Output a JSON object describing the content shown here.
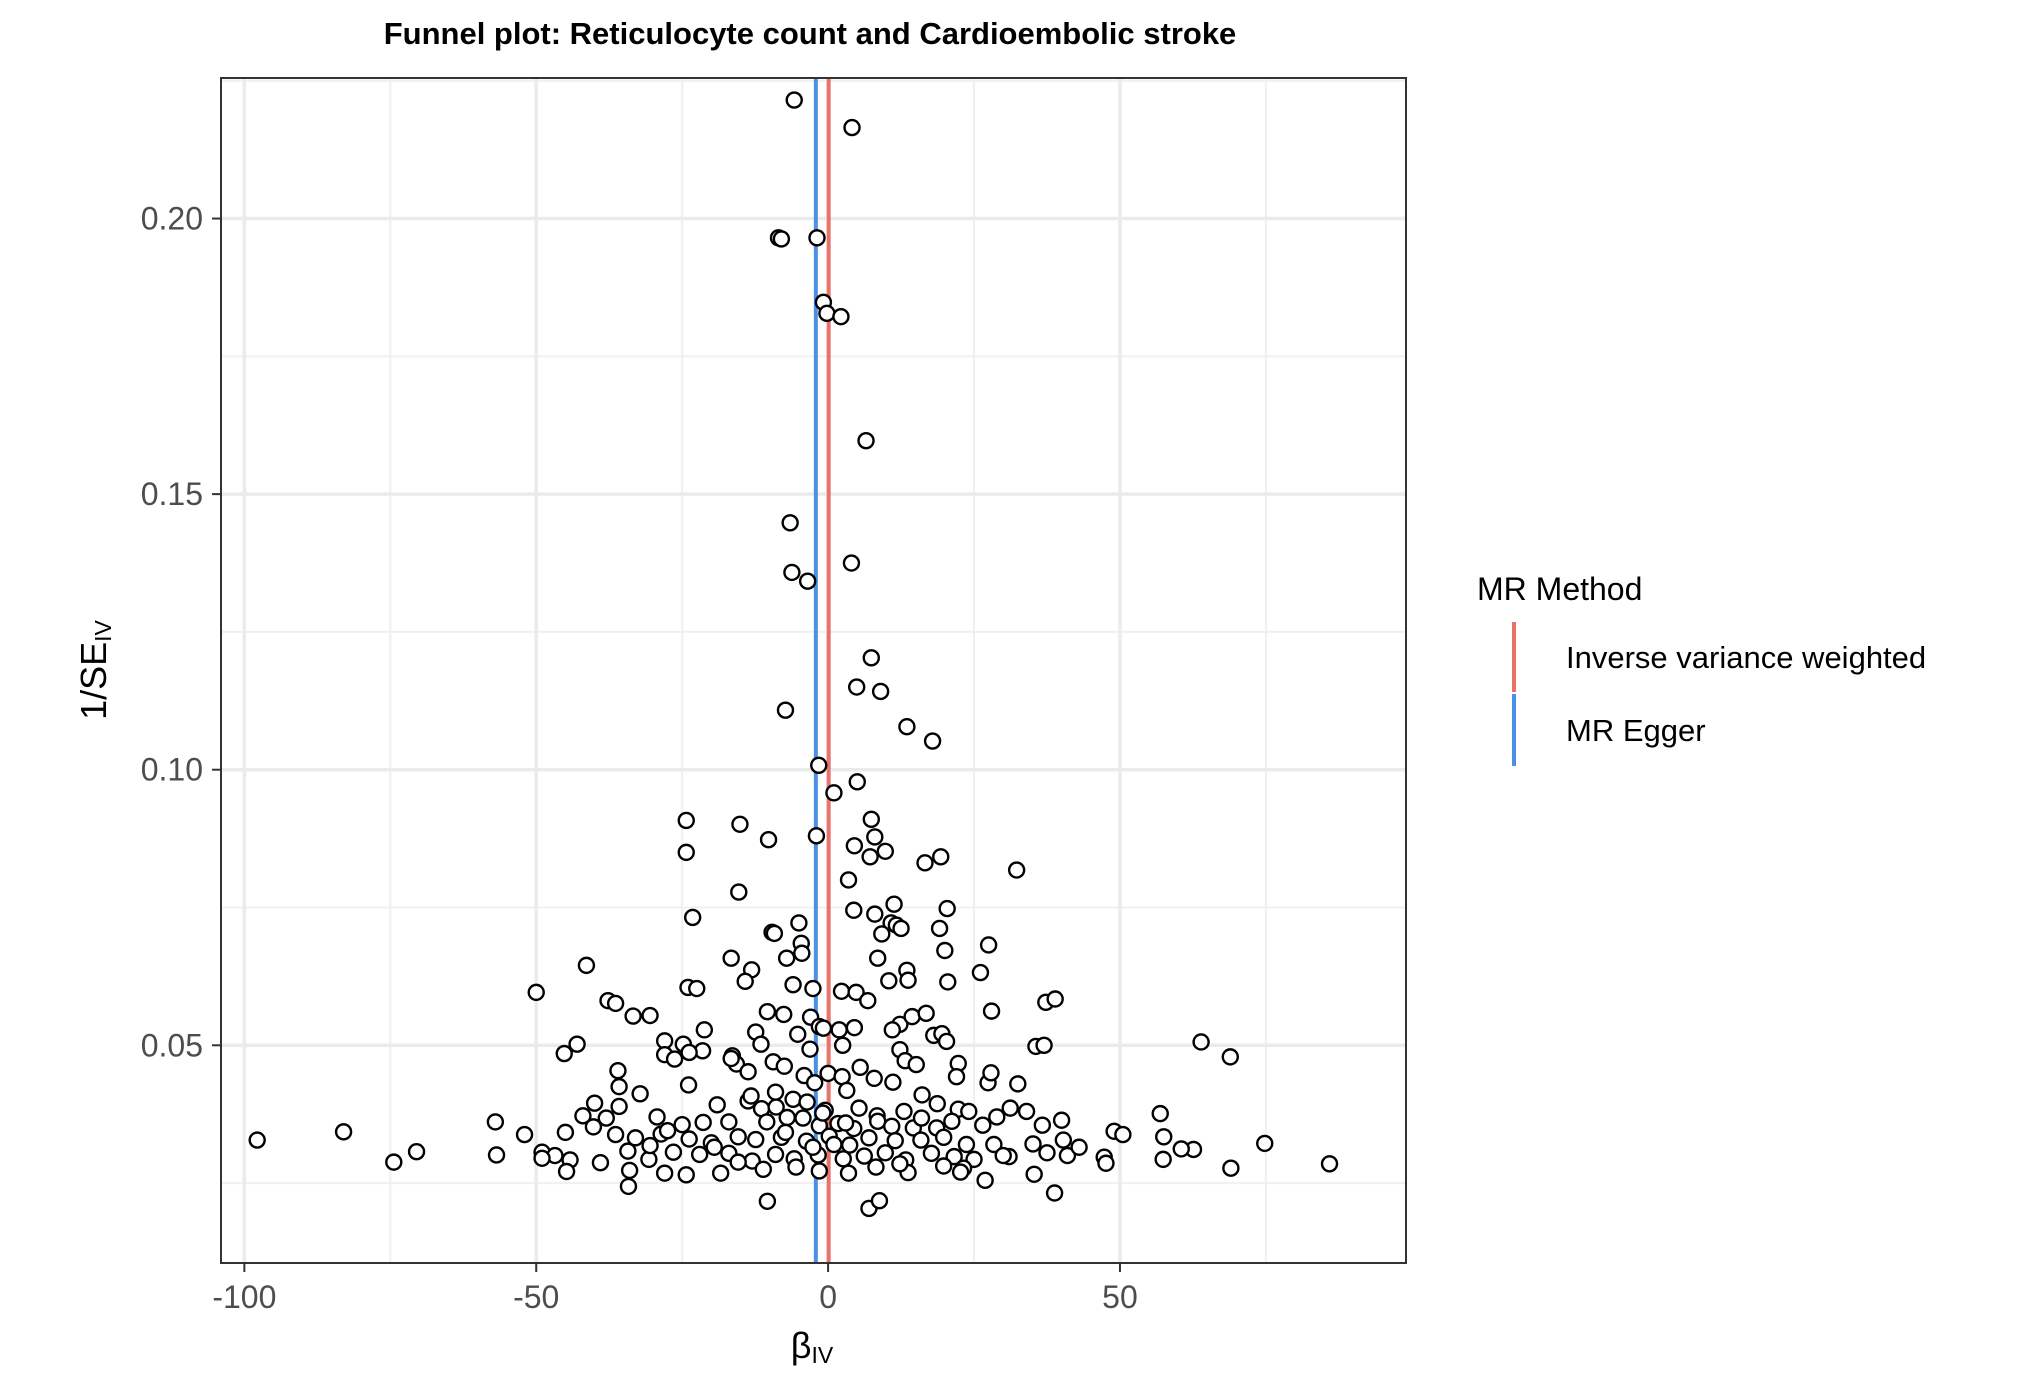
{
  "chart_data": {
    "type": "scatter",
    "title": "Funnel plot: Reticulocyte count and Cardioembolic stroke",
    "xlabel": {
      "main": "β",
      "sub": "IV"
    },
    "ylabel": {
      "main": "1/SE",
      "sub": "IV"
    },
    "xlim": [
      -104,
      99
    ],
    "ylim": [
      0.0105,
      0.2255
    ],
    "x_ticks": [
      -100,
      -50,
      0,
      50
    ],
    "x_tick_labels": [
      "-100",
      "-50",
      "0",
      "50"
    ],
    "y_ticks": [
      0.05,
      0.1,
      0.15,
      0.2
    ],
    "y_tick_labels": [
      "0.05",
      "0.10",
      "0.15",
      "0.20"
    ],
    "grid": true,
    "legend": {
      "title": "MR Method",
      "placement": "right",
      "entries": [
        {
          "label": "Inverse variance weighted",
          "color": "#e8736a"
        },
        {
          "label": "MR Egger",
          "color": "#4a8fe8"
        }
      ]
    },
    "vlines": [
      {
        "method": "Inverse variance weighted",
        "x": 0.1,
        "color": "#e8736a"
      },
      {
        "method": "MR Egger",
        "x": -2.1,
        "color": "#4a8fe8"
      }
    ],
    "points": [
      [
        -5.8,
        0.2215
      ],
      [
        4.1,
        0.2165
      ],
      [
        -8.5,
        0.1965
      ],
      [
        -8.0,
        0.1963
      ],
      [
        -1.9,
        0.1965
      ],
      [
        -0.8,
        0.1848
      ],
      [
        -0.2,
        0.1828
      ],
      [
        2.2,
        0.1822
      ],
      [
        6.5,
        0.1597
      ],
      [
        -6.5,
        0.1448
      ],
      [
        4.0,
        0.1375
      ],
      [
        -6.2,
        0.1358
      ],
      [
        -3.5,
        0.1342
      ],
      [
        7.4,
        0.1203
      ],
      [
        4.9,
        0.115
      ],
      [
        9.0,
        0.1142
      ],
      [
        -7.3,
        0.1108
      ],
      [
        13.5,
        0.1078
      ],
      [
        17.9,
        0.1052
      ],
      [
        -1.6,
        0.1008
      ],
      [
        1.0,
        0.0958
      ],
      [
        5.0,
        0.0978
      ],
      [
        -24.3,
        0.0908
      ],
      [
        -15.1,
        0.0901
      ],
      [
        7.4,
        0.091
      ],
      [
        -10.2,
        0.0873
      ],
      [
        -2.0,
        0.088
      ],
      [
        4.5,
        0.0862
      ],
      [
        8.0,
        0.0878
      ],
      [
        -24.3,
        0.085
      ],
      [
        9.8,
        0.0852
      ],
      [
        7.2,
        0.0842
      ],
      [
        16.6,
        0.0831
      ],
      [
        19.3,
        0.0842
      ],
      [
        32.3,
        0.0818
      ],
      [
        3.5,
        0.08
      ],
      [
        -15.3,
        0.0778
      ],
      [
        11.3,
        0.0756
      ],
      [
        4.4,
        0.0745
      ],
      [
        8.0,
        0.0738
      ],
      [
        20.4,
        0.0748
      ],
      [
        -23.2,
        0.0732
      ],
      [
        10.8,
        0.0722
      ],
      [
        11.7,
        0.0718
      ],
      [
        -9.6,
        0.0705
      ],
      [
        -9.2,
        0.0703
      ],
      [
        -5.0,
        0.0722
      ],
      [
        9.2,
        0.0702
      ],
      [
        12.5,
        0.0712
      ],
      [
        19.1,
        0.0712
      ],
      [
        -4.6,
        0.0685
      ],
      [
        20.0,
        0.0672
      ],
      [
        27.5,
        0.0682
      ],
      [
        -16.6,
        0.0658
      ],
      [
        -13.1,
        0.0637
      ],
      [
        -7.1,
        0.0658
      ],
      [
        -4.5,
        0.0667
      ],
      [
        8.5,
        0.0658
      ],
      [
        13.5,
        0.0636
      ],
      [
        26.1,
        0.0632
      ],
      [
        -41.4,
        0.0645
      ],
      [
        -24.0,
        0.0605
      ],
      [
        -22.5,
        0.0603
      ],
      [
        -14.2,
        0.0616
      ],
      [
        -6.0,
        0.061
      ],
      [
        -2.6,
        0.0603
      ],
      [
        2.3,
        0.0598
      ],
      [
        4.8,
        0.0596
      ],
      [
        6.8,
        0.0581
      ],
      [
        10.4,
        0.0617
      ],
      [
        13.7,
        0.0618
      ],
      [
        20.5,
        0.0615
      ],
      [
        -50.0,
        0.0596
      ],
      [
        -37.7,
        0.0581
      ],
      [
        -36.4,
        0.0576
      ],
      [
        -33.4,
        0.0553
      ],
      [
        -30.5,
        0.0554
      ],
      [
        -21.2,
        0.0528
      ],
      [
        -10.4,
        0.0561
      ],
      [
        -7.6,
        0.0556
      ],
      [
        -3.0,
        0.0551
      ],
      [
        -1.5,
        0.0534
      ],
      [
        1.9,
        0.0528
      ],
      [
        4.5,
        0.0532
      ],
      [
        12.3,
        0.0538
      ],
      [
        14.4,
        0.0552
      ],
      [
        16.8,
        0.0558
      ],
      [
        28.0,
        0.0562
      ],
      [
        37.3,
        0.0578
      ],
      [
        38.9,
        0.0584
      ],
      [
        -43.0,
        0.0502
      ],
      [
        -45.2,
        0.0485
      ],
      [
        -28.0,
        0.0508
      ],
      [
        -24.8,
        0.0502
      ],
      [
        -21.5,
        0.049
      ],
      [
        -12.4,
        0.0524
      ],
      [
        -11.5,
        0.0502
      ],
      [
        -5.2,
        0.052
      ],
      [
        -3.1,
        0.0493
      ],
      [
        2.5,
        0.05
      ],
      [
        5.5,
        0.046
      ],
      [
        11.0,
        0.0528
      ],
      [
        12.3,
        0.0492
      ],
      [
        18.1,
        0.0518
      ],
      [
        19.5,
        0.0521
      ],
      [
        20.3,
        0.0507
      ],
      [
        35.6,
        0.0498
      ],
      [
        37.0,
        0.05
      ],
      [
        63.9,
        0.0506
      ],
      [
        68.9,
        0.0479
      ],
      [
        -36.0,
        0.0454
      ],
      [
        -28.0,
        0.0483
      ],
      [
        -26.3,
        0.0475
      ],
      [
        -23.8,
        0.0487
      ],
      [
        -16.4,
        0.0481
      ],
      [
        -15.7,
        0.0466
      ],
      [
        -13.7,
        0.0452
      ],
      [
        -9.4,
        0.047
      ],
      [
        -7.5,
        0.0462
      ],
      [
        -4.1,
        0.0445
      ],
      [
        -2.3,
        0.0432
      ],
      [
        0.0,
        0.0449
      ],
      [
        2.4,
        0.0443
      ],
      [
        7.9,
        0.044
      ],
      [
        11.1,
        0.0433
      ],
      [
        13.2,
        0.0472
      ],
      [
        15.1,
        0.0465
      ],
      [
        22.3,
        0.0467
      ],
      [
        22.0,
        0.0443
      ],
      [
        27.4,
        0.0432
      ],
      [
        27.9,
        0.045
      ],
      [
        32.5,
        0.043
      ],
      [
        -40.0,
        0.0395
      ],
      [
        -35.8,
        0.0425
      ],
      [
        -32.2,
        0.0412
      ],
      [
        -23.9,
        0.0428
      ],
      [
        -19.0,
        0.0392
      ],
      [
        -13.7,
        0.0399
      ],
      [
        -13.2,
        0.0408
      ],
      [
        -11.4,
        0.0385
      ],
      [
        -9.0,
        0.0415
      ],
      [
        -6.0,
        0.0402
      ],
      [
        -3.6,
        0.0397
      ],
      [
        -0.5,
        0.0382
      ],
      [
        3.2,
        0.0418
      ],
      [
        5.3,
        0.0386
      ],
      [
        8.4,
        0.0372
      ],
      [
        13.0,
        0.038
      ],
      [
        16.1,
        0.041
      ],
      [
        18.7,
        0.0394
      ],
      [
        22.3,
        0.0384
      ],
      [
        28.9,
        0.037
      ],
      [
        31.2,
        0.0386
      ],
      [
        34.0,
        0.038
      ],
      [
        -42.0,
        0.0372
      ],
      [
        -38.0,
        0.0368
      ],
      [
        -35.8,
        0.0389
      ],
      [
        -29.3,
        0.037
      ],
      [
        -25.0,
        0.0356
      ],
      [
        -21.4,
        0.036
      ],
      [
        -17.0,
        0.0361
      ],
      [
        -10.5,
        0.0361
      ],
      [
        -7.0,
        0.0369
      ],
      [
        -4.3,
        0.0368
      ],
      [
        -1.5,
        0.0354
      ],
      [
        1.7,
        0.0358
      ],
      [
        4.4,
        0.0349
      ],
      [
        8.5,
        0.0362
      ],
      [
        10.9,
        0.0353
      ],
      [
        14.6,
        0.035
      ],
      [
        18.6,
        0.035
      ],
      [
        21.2,
        0.0362
      ],
      [
        26.5,
        0.0355
      ],
      [
        36.7,
        0.0355
      ],
      [
        40.0,
        0.0364
      ],
      [
        56.9,
        0.0376
      ],
      [
        -57.0,
        0.0361
      ],
      [
        -52.0,
        0.0338
      ],
      [
        -45.0,
        0.0342
      ],
      [
        -40.2,
        0.0352
      ],
      [
        -36.4,
        0.0338
      ],
      [
        -33.0,
        0.0332
      ],
      [
        -28.6,
        0.0339
      ],
      [
        -23.8,
        0.033
      ],
      [
        -20.0,
        0.0323
      ],
      [
        -15.4,
        0.0334
      ],
      [
        -12.4,
        0.0329
      ],
      [
        -8.0,
        0.0333
      ],
      [
        -3.7,
        0.0326
      ],
      [
        0.2,
        0.0335
      ],
      [
        3.7,
        0.0319
      ],
      [
        7.0,
        0.0332
      ],
      [
        11.5,
        0.0327
      ],
      [
        15.9,
        0.0328
      ],
      [
        19.8,
        0.0333
      ],
      [
        23.7,
        0.032
      ],
      [
        28.4,
        0.032
      ],
      [
        35.1,
        0.0321
      ],
      [
        40.3,
        0.0328
      ],
      [
        49.0,
        0.0344
      ],
      [
        57.5,
        0.0334
      ],
      [
        -97.8,
        0.0328
      ],
      [
        -83.0,
        0.0343
      ],
      [
        -70.5,
        0.0307
      ],
      [
        -49.0,
        0.0306
      ],
      [
        -46.8,
        0.03
      ],
      [
        -44.2,
        0.0292
      ],
      [
        -39.0,
        0.0287
      ],
      [
        -34.3,
        0.0308
      ],
      [
        -30.7,
        0.0293
      ],
      [
        -26.5,
        0.0306
      ],
      [
        -22.0,
        0.0302
      ],
      [
        -17.0,
        0.0304
      ],
      [
        -13.0,
        0.029
      ],
      [
        -9.0,
        0.0302
      ],
      [
        -5.8,
        0.0294
      ],
      [
        -1.7,
        0.0301
      ],
      [
        2.6,
        0.0294
      ],
      [
        6.2,
        0.0299
      ],
      [
        9.8,
        0.0305
      ],
      [
        13.3,
        0.0292
      ],
      [
        17.7,
        0.0304
      ],
      [
        21.6,
        0.0298
      ],
      [
        25.0,
        0.0293
      ],
      [
        31.0,
        0.0298
      ],
      [
        37.5,
        0.0305
      ],
      [
        41.0,
        0.03
      ],
      [
        47.3,
        0.0297
      ],
      [
        57.4,
        0.0293
      ],
      [
        62.6,
        0.0311
      ],
      [
        74.8,
        0.0322
      ],
      [
        -74.4,
        0.0288
      ],
      [
        -56.8,
        0.0301
      ],
      [
        -49.0,
        0.0295
      ],
      [
        -44.8,
        0.0271
      ],
      [
        -34.0,
        0.0273
      ],
      [
        -28.0,
        0.0268
      ],
      [
        -24.3,
        0.0265
      ],
      [
        -18.4,
        0.0268
      ],
      [
        -15.4,
        0.0288
      ],
      [
        -11.1,
        0.0275
      ],
      [
        -5.5,
        0.0279
      ],
      [
        -1.5,
        0.0272
      ],
      [
        3.5,
        0.0268
      ],
      [
        8.2,
        0.0279
      ],
      [
        13.7,
        0.0269
      ],
      [
        19.8,
        0.0281
      ],
      [
        23.2,
        0.0277
      ],
      [
        26.9,
        0.0255
      ],
      [
        35.3,
        0.0266
      ],
      [
        47.6,
        0.0286
      ],
      [
        69.0,
        0.0277
      ],
      [
        85.9,
        0.0285
      ],
      [
        -34.2,
        0.0244
      ],
      [
        -10.4,
        0.0217
      ],
      [
        7.0,
        0.0204
      ],
      [
        8.8,
        0.0218
      ],
      [
        38.8,
        0.0232
      ],
      [
        22.7,
        0.027
      ],
      [
        30.0,
        0.03
      ],
      [
        12.3,
        0.0285
      ],
      [
        -2.6,
        0.0315
      ],
      [
        -19.5,
        0.0315
      ],
      [
        43.0,
        0.0315
      ],
      [
        60.5,
        0.0312
      ],
      [
        50.5,
        0.0338
      ],
      [
        -30.5,
        0.0318
      ],
      [
        -7.3,
        0.0342
      ],
      [
        16.0,
        0.0368
      ],
      [
        -27.5,
        0.0345
      ],
      [
        3.0,
        0.0359
      ],
      [
        -0.9,
        0.0377
      ],
      [
        24.1,
        0.038
      ],
      [
        -16.6,
        0.0476
      ],
      [
        -0.8,
        0.0531
      ],
      [
        -8.9,
        0.0388
      ],
      [
        1.0,
        0.032
      ]
    ]
  }
}
